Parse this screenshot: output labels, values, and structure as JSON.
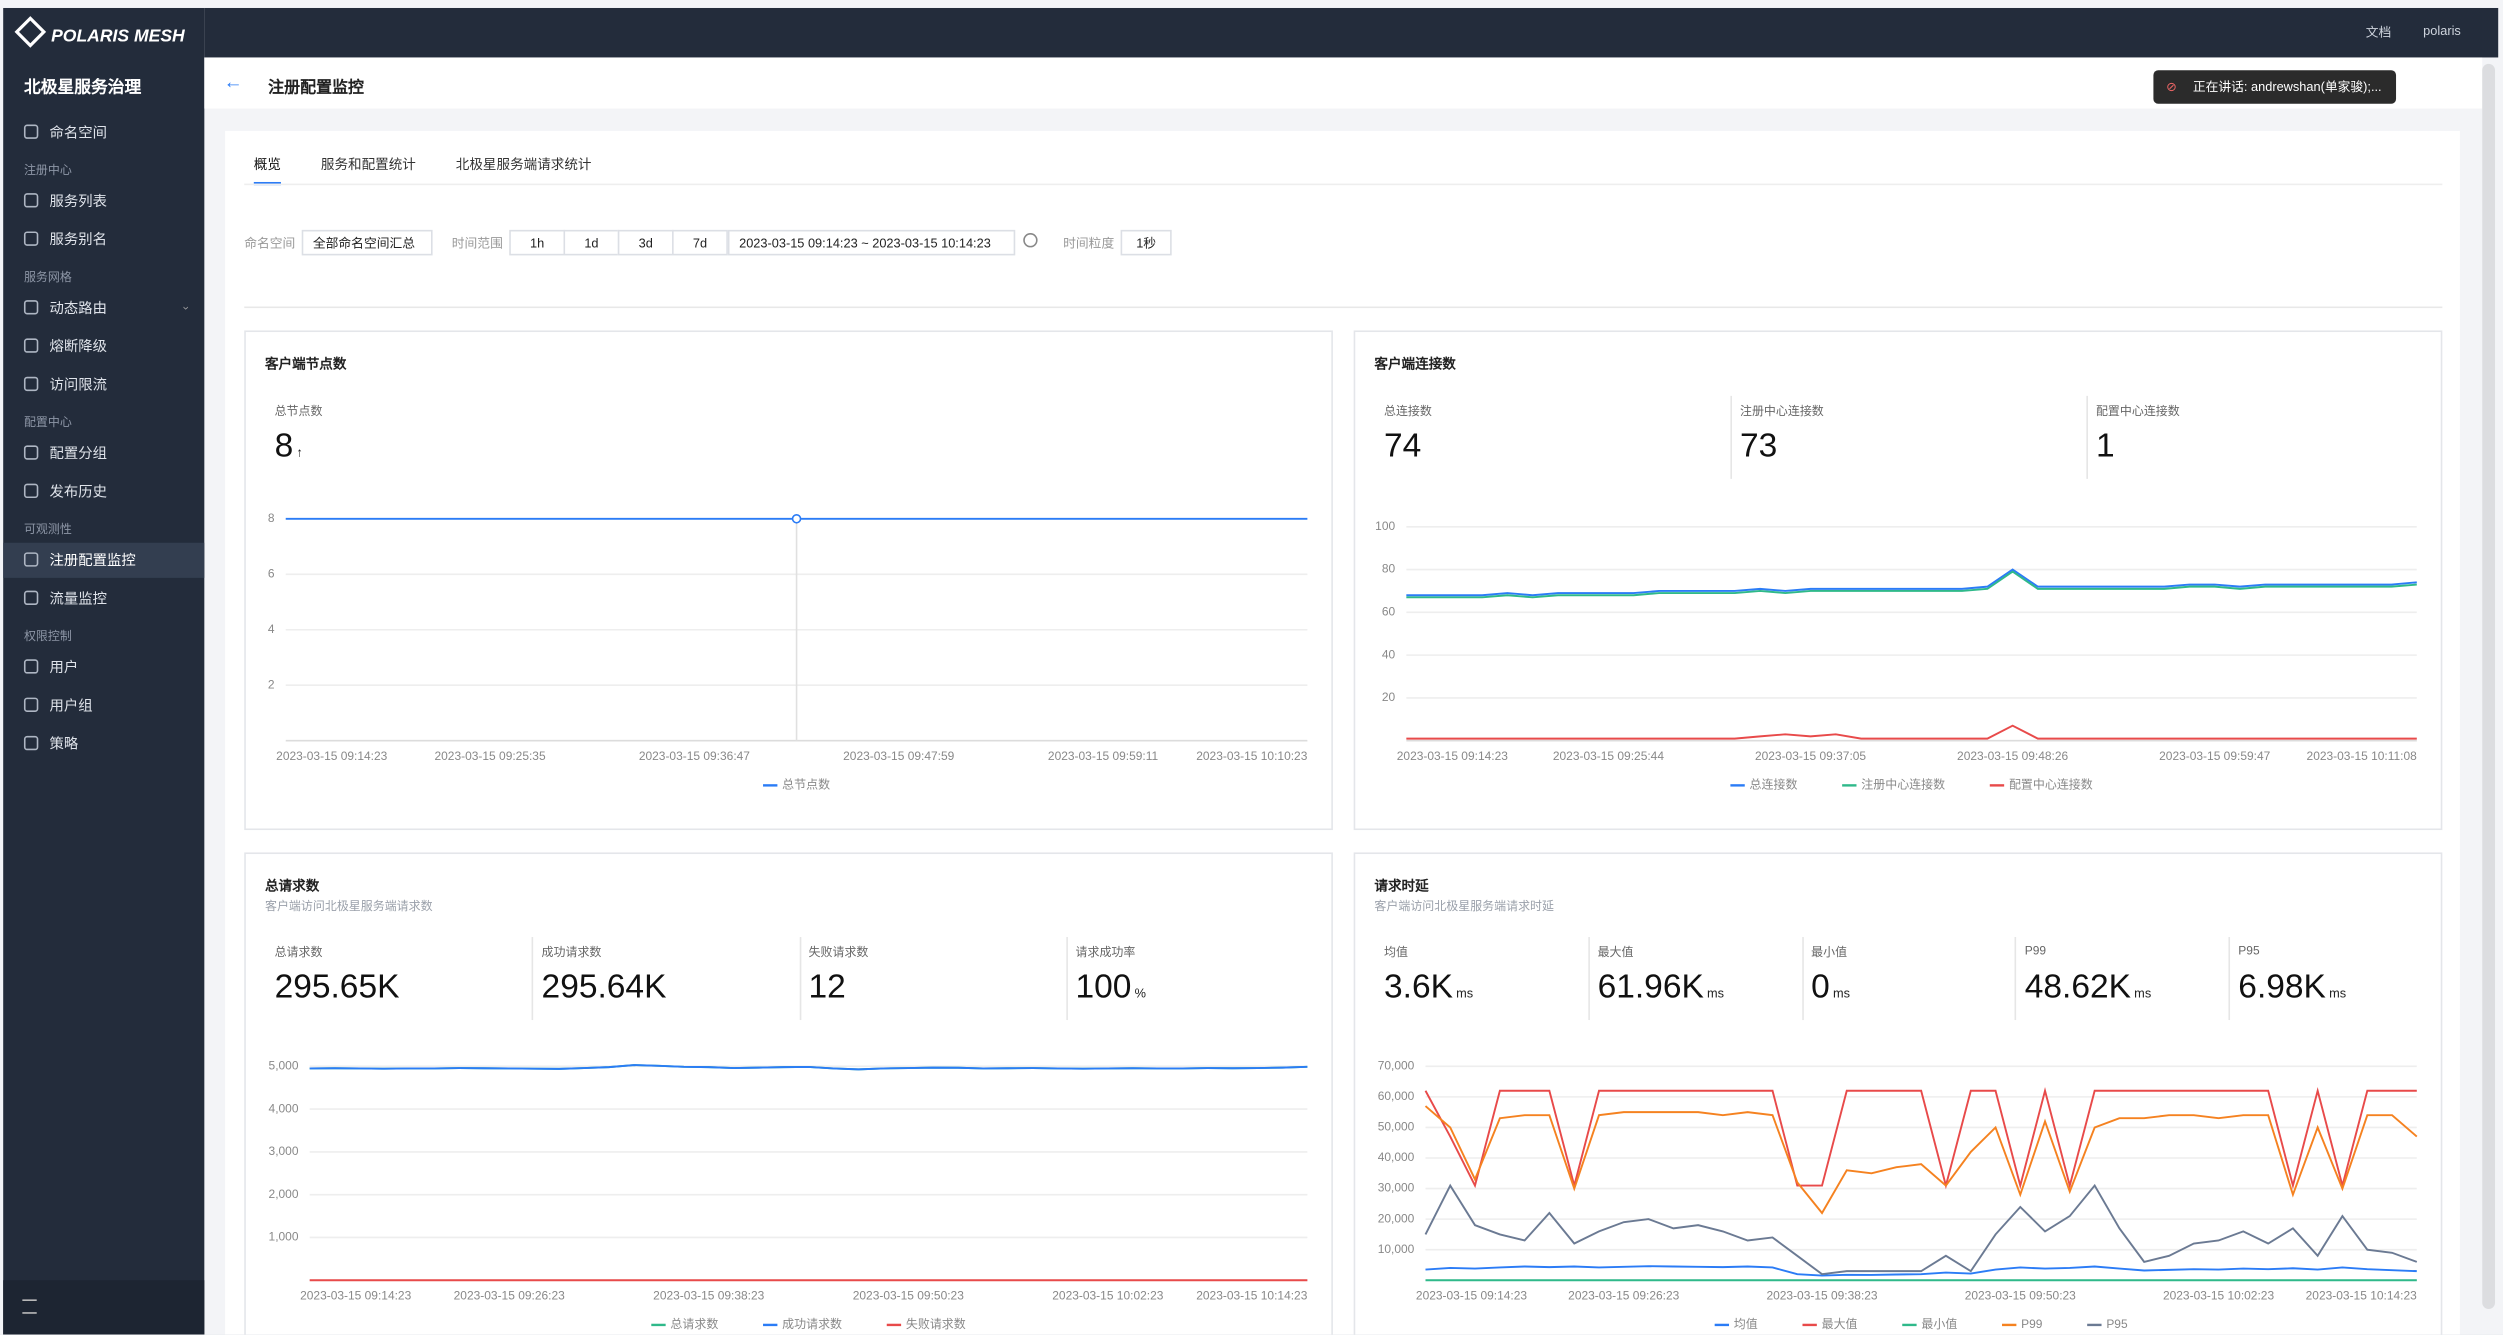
{
  "app": {
    "logo": "POLARIS MESH",
    "title": "北极星服务治理",
    "top_item": "命名空间",
    "groups": [
      {
        "name": "注册中心",
        "items": [
          "服务列表",
          "服务别名"
        ]
      },
      {
        "name": "服务网格",
        "items": [
          "动态路由",
          "熔断降级",
          "访问限流"
        ]
      },
      {
        "name": "配置中心",
        "items": [
          "配置分组",
          "发布历史"
        ]
      },
      {
        "name": "可观测性",
        "items": [
          "注册配置监控",
          "流量监控"
        ],
        "active_index": 0
      },
      {
        "name": "权限控制",
        "items": [
          "用户",
          "用户组",
          "策略"
        ]
      }
    ]
  },
  "header": {
    "links": [
      "文档",
      "polaris"
    ]
  },
  "page": {
    "title": "注册配置监控",
    "notice": "正在讲话: andrewshan(单家骏);..."
  },
  "tabs": {
    "items": [
      "概览",
      "服务和配置统计",
      "北极星服务端请求统计"
    ],
    "active_index": 0
  },
  "filters": {
    "namespace_label": "命名空间",
    "namespace_value": "全部命名空间汇总",
    "time_label": "时间范围",
    "ranges": [
      "1h",
      "1d",
      "3d",
      "7d"
    ],
    "date_range": "2023-03-15 09:14:23 ~ 2023-03-15 10:14:23",
    "granularity_label": "时间粒度",
    "granularity_value": "1秒"
  },
  "panels": [
    {
      "title": "客户端节点数",
      "stats": [
        {
          "label": "总节点数",
          "value": 8
        }
      ],
      "chart": {
        "type": "line",
        "highlight_index": 20,
        "categories": [
          "2023-03-15 09:14:23",
          null,
          null,
          null,
          null,
          null,
          null,
          null,
          "2023-03-15 09:25:35",
          null,
          null,
          null,
          null,
          null,
          null,
          null,
          "2023-03-15 09:36:47",
          null,
          null,
          null,
          null,
          null,
          null,
          null,
          "2023-03-15 09:47:59",
          null,
          null,
          null,
          null,
          null,
          null,
          null,
          "2023-03-15 09:59:11",
          null,
          null,
          null,
          null,
          null,
          null,
          null,
          "2023-03-15 10:10:23"
        ],
        "ylim": [
          0,
          8
        ],
        "yticks": [
          2,
          4,
          6,
          8
        ],
        "series": [
          {
            "name": "总节点数",
            "color": "#2b7cf6",
            "values": [
              8,
              8,
              8,
              8,
              8,
              8,
              8,
              8,
              8,
              8,
              8,
              8,
              8,
              8,
              8,
              8,
              8,
              8,
              8,
              8,
              8,
              8,
              8,
              8,
              8,
              8,
              8,
              8,
              8,
              8,
              8,
              8,
              8,
              8,
              8,
              8,
              8,
              8,
              8,
              8,
              8
            ]
          }
        ]
      }
    },
    {
      "title": "客户端连接数",
      "stats": [
        {
          "label": "总连接数",
          "value": 74
        },
        {
          "label": "注册中心连接数",
          "value": 73
        },
        {
          "label": "配置中心连接数",
          "value": 1
        }
      ],
      "chart": {
        "type": "line",
        "categories": [
          "2023-03-15 09:14:23",
          null,
          null,
          null,
          null,
          null,
          null,
          null,
          "2023-03-15 09:25:44",
          null,
          null,
          null,
          null,
          null,
          null,
          null,
          "2023-03-15 09:37:05",
          null,
          null,
          null,
          null,
          null,
          null,
          null,
          "2023-03-15 09:48:26",
          null,
          null,
          null,
          null,
          null,
          null,
          null,
          "2023-03-15 09:59:47",
          null,
          null,
          null,
          null,
          null,
          null,
          null,
          "2023-03-15 10:11:08"
        ],
        "ylim": [
          0,
          100
        ],
        "yticks": [
          20,
          40,
          60,
          80,
          100
        ],
        "series": [
          {
            "name": "总连接数",
            "color": "#2b7cf6",
            "values": [
              68,
              68,
              68,
              68,
              69,
              68,
              69,
              69,
              69,
              69,
              70,
              70,
              70,
              70,
              71,
              70,
              71,
              71,
              71,
              71,
              71,
              71,
              71,
              72,
              80,
              72,
              72,
              72,
              72,
              72,
              72,
              73,
              73,
              72,
              73,
              73,
              73,
              73,
              73,
              73,
              74
            ]
          },
          {
            "name": "注册中心连接数",
            "color": "#2fb98a",
            "values": [
              67,
              67,
              67,
              67,
              68,
              67,
              68,
              68,
              68,
              68,
              69,
              69,
              69,
              69,
              70,
              69,
              70,
              70,
              70,
              70,
              70,
              70,
              70,
              71,
              79,
              71,
              71,
              71,
              71,
              71,
              71,
              72,
              72,
              71,
              72,
              72,
              72,
              72,
              72,
              72,
              73
            ]
          },
          {
            "name": "配置中心连接数",
            "color": "#e84a4a",
            "values": [
              1,
              1,
              1,
              1,
              1,
              1,
              1,
              1,
              1,
              1,
              1,
              1,
              1,
              1,
              2,
              3,
              2,
              3,
              1,
              1,
              1,
              1,
              1,
              1,
              7,
              1,
              1,
              1,
              1,
              1,
              1,
              1,
              1,
              1,
              1,
              1,
              1,
              1,
              1,
              1,
              1
            ]
          }
        ]
      }
    },
    {
      "title": "总请求数",
      "subtitle": "客户端访问北极星服务端请求数",
      "stats": [
        {
          "label": "总请求数",
          "value": "295.65K"
        },
        {
          "label": "成功请求数",
          "value": "295.64K"
        },
        {
          "label": "失败请求数",
          "value": 12
        },
        {
          "label": "请求成功率",
          "value": 100,
          "unit": "%"
        }
      ],
      "chart": {
        "type": "line",
        "categories": [
          "2023-03-15 09:14:23",
          null,
          null,
          null,
          null,
          null,
          null,
          null,
          "2023-03-15 09:26:23",
          null,
          null,
          null,
          null,
          null,
          null,
          null,
          "2023-03-15 09:38:23",
          null,
          null,
          null,
          null,
          null,
          null,
          null,
          "2023-03-15 09:50:23",
          null,
          null,
          null,
          null,
          null,
          null,
          null,
          "2023-03-15 10:02:23",
          null,
          null,
          null,
          null,
          null,
          null,
          null,
          "2023-03-15 10:14:23"
        ],
        "ylim": [
          0,
          5000
        ],
        "yticks": [
          {
            "value": 1000,
            "label": "1,000"
          },
          {
            "value": 2000,
            "label": "2,000"
          },
          {
            "value": 3000,
            "label": "3,000"
          },
          {
            "value": 4000,
            "label": "4,000"
          },
          {
            "value": 5000,
            "label": "5,000"
          }
        ],
        "series": [
          {
            "name": "总请求数",
            "color": "#2fb98a",
            "values": [
              4950,
              4955,
              4950,
              4945,
              4950,
              4950,
              4960,
              4955,
              4950,
              4945,
              4940,
              4960,
              4980,
              5030,
              5010,
              4990,
              4980,
              4960,
              4970,
              4980,
              4985,
              4950,
              4930,
              4950,
              4960,
              4970,
              4965,
              4950,
              4955,
              4960,
              4950,
              4945,
              4950,
              4955,
              4950,
              4950,
              4960,
              4955,
              4960,
              4970,
              4990
            ]
          },
          {
            "name": "成功请求数",
            "color": "#2b7cf6",
            "values": [
              4950,
              4955,
              4950,
              4945,
              4950,
              4950,
              4960,
              4955,
              4950,
              4945,
              4940,
              4960,
              4980,
              5030,
              5010,
              4990,
              4980,
              4960,
              4970,
              4980,
              4985,
              4950,
              4930,
              4950,
              4960,
              4970,
              4965,
              4950,
              4955,
              4960,
              4950,
              4945,
              4950,
              4955,
              4950,
              4950,
              4960,
              4955,
              4960,
              4970,
              4990
            ]
          },
          {
            "name": "失败请求数",
            "color": "#e84a4a",
            "values": [
              0,
              0,
              0,
              0,
              0,
              0,
              0,
              0,
              0,
              0,
              0,
              0,
              0,
              0,
              0,
              0,
              0,
              0,
              0,
              0,
              0,
              0,
              0,
              0,
              0,
              0,
              0,
              0,
              0,
              0,
              0,
              0,
              0,
              0,
              0,
              0,
              0,
              0,
              0,
              0,
              0
            ]
          }
        ]
      }
    },
    {
      "title": "请求时延",
      "subtitle": "客户端访问北极星服务端请求时延",
      "stats": [
        {
          "label": "均值",
          "value": "3.6K",
          "unit": "ms"
        },
        {
          "label": "最大值",
          "value": "61.96K",
          "unit": "ms"
        },
        {
          "label": "最小值",
          "value": 0,
          "unit": "ms"
        },
        {
          "label": "P99",
          "value": "48.62K",
          "unit": "ms"
        },
        {
          "label": "P95",
          "value": "6.98K",
          "unit": "ms"
        }
      ],
      "chart": {
        "type": "line",
        "categories": [
          "2023-03-15 09:14:23",
          null,
          null,
          null,
          null,
          null,
          null,
          null,
          "2023-03-15 09:26:23",
          null,
          null,
          null,
          null,
          null,
          null,
          null,
          "2023-03-15 09:38:23",
          null,
          null,
          null,
          null,
          null,
          null,
          null,
          "2023-03-15 09:50:23",
          null,
          null,
          null,
          null,
          null,
          null,
          null,
          "2023-03-15 10:02:23",
          null,
          null,
          null,
          null,
          null,
          null,
          null,
          "2023-03-15 10:14:23"
        ],
        "ylim": [
          0,
          70000
        ],
        "yticks": [
          {
            "value": 10000,
            "label": "10,000"
          },
          {
            "value": 20000,
            "label": "20,000"
          },
          {
            "value": 30000,
            "label": "30,000"
          },
          {
            "value": 40000,
            "label": "40,000"
          },
          {
            "value": 50000,
            "label": "50,000"
          },
          {
            "value": 60000,
            "label": "60,000"
          },
          {
            "value": 70000,
            "label": "70,000"
          }
        ],
        "series": [
          {
            "name": "均值",
            "color": "#2b7cf6",
            "values": [
              3500,
              4000,
              3800,
              4200,
              4500,
              4300,
              4500,
              4200,
              4400,
              4600,
              4500,
              4400,
              4300,
              4500,
              4200,
              2000,
              1500,
              1800,
              1700,
              1900,
              2000,
              2500,
              2200,
              3500,
              4200,
              3800,
              4000,
              4500,
              3800,
              3200,
              3400,
              3600,
              3500,
              3800,
              3600,
              3900,
              3500,
              4200,
              3600,
              3300,
              3000
            ]
          },
          {
            "name": "最大值",
            "color": "#e84a4a",
            "values": [
              62000,
              47000,
              31000,
              62000,
              62000,
              62000,
              31000,
              62000,
              62000,
              62000,
              62000,
              62000,
              62000,
              62000,
              62000,
              31000,
              31000,
              62000,
              62000,
              62000,
              62000,
              31000,
              62000,
              62000,
              31000,
              62000,
              31000,
              62000,
              62000,
              62000,
              62000,
              62000,
              62000,
              62000,
              62000,
              31000,
              62000,
              31000,
              62000,
              62000,
              62000
            ]
          },
          {
            "name": "最小值",
            "color": "#2fb98a",
            "values": [
              0,
              0,
              0,
              0,
              0,
              0,
              0,
              0,
              0,
              0,
              0,
              0,
              0,
              0,
              0,
              0,
              0,
              0,
              0,
              0,
              0,
              0,
              0,
              0,
              0,
              0,
              0,
              0,
              0,
              0,
              0,
              0,
              0,
              0,
              0,
              0,
              0,
              0,
              0,
              0,
              0
            ]
          },
          {
            "name": "P99",
            "color": "#f58220",
            "values": [
              57000,
              50000,
              33000,
              53000,
              54000,
              54000,
              30000,
              54000,
              55000,
              55000,
              55000,
              55000,
              54000,
              55000,
              54000,
              32000,
              22000,
              36000,
              35000,
              37000,
              38000,
              31000,
              42000,
              50000,
              28000,
              52000,
              29000,
              50000,
              53000,
              53000,
              54000,
              54000,
              53000,
              54000,
              54000,
              28000,
              50000,
              30000,
              54000,
              54000,
              47000
            ]
          },
          {
            "name": "P95",
            "color": "#6b7a93",
            "values": [
              15000,
              31000,
              18000,
              15000,
              13000,
              22000,
              12000,
              16000,
              19000,
              20000,
              17000,
              18000,
              16000,
              13000,
              14000,
              8000,
              2000,
              3000,
              3000,
              3000,
              3000,
              8000,
              3000,
              15000,
              24000,
              16000,
              21000,
              31000,
              17000,
              6000,
              8000,
              12000,
              13000,
              16000,
              12000,
              17000,
              8000,
              21000,
              10000,
              9000,
              6000
            ]
          }
        ]
      }
    }
  ]
}
